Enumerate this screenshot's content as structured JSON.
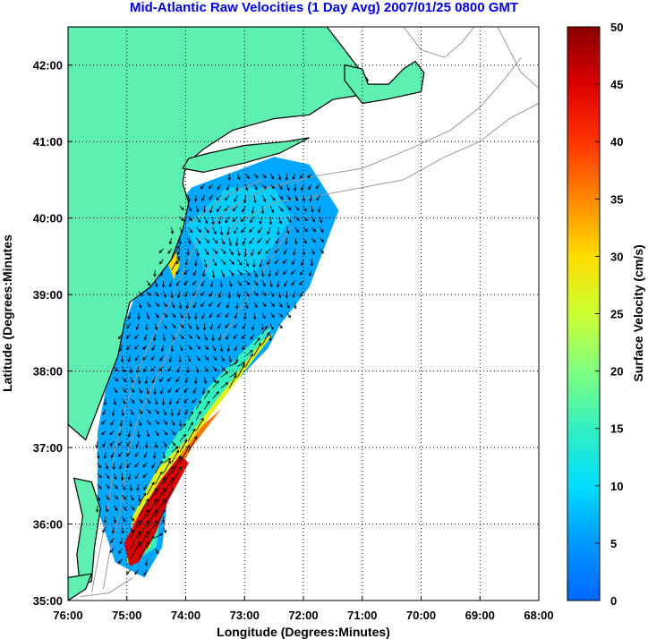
{
  "chart_data": {
    "type": "heatmap",
    "title": "Mid-Atlantic Raw Velocities (1 Day Avg) 2007/01/25 0800 GMT",
    "xlabel": "Longitude (Degrees:Minutes)",
    "ylabel": "Latitude (Degrees:Minutes",
    "xlim": [
      -76,
      -68
    ],
    "ylim": [
      35,
      42.5
    ],
    "x_ticks": [
      {
        "value": -76,
        "label": "76:00"
      },
      {
        "value": -75,
        "label": "75:00"
      },
      {
        "value": -74,
        "label": "74:00"
      },
      {
        "value": -73,
        "label": "73:00"
      },
      {
        "value": -72,
        "label": "72:00"
      },
      {
        "value": -71,
        "label": "71:00"
      },
      {
        "value": -70,
        "label": "70:00"
      },
      {
        "value": -69,
        "label": "69:00"
      },
      {
        "value": -68,
        "label": "68:00"
      }
    ],
    "y_ticks": [
      {
        "value": 35,
        "label": "35:00"
      },
      {
        "value": 36,
        "label": "36:00"
      },
      {
        "value": 37,
        "label": "37:00"
      },
      {
        "value": 38,
        "label": "38:00"
      },
      {
        "value": 39,
        "label": "39:00"
      },
      {
        "value": 40,
        "label": "40:00"
      },
      {
        "value": 41,
        "label": "41:00"
      },
      {
        "value": 42,
        "label": "42:00"
      }
    ],
    "grid": "dotted",
    "colorbar": {
      "label": "Surface Velocity (cm/s)",
      "range": [
        0,
        50
      ],
      "ticks": [
        {
          "value": 0,
          "label": "0"
        },
        {
          "value": 5,
          "label": "5"
        },
        {
          "value": 10,
          "label": "10"
        },
        {
          "value": 15,
          "label": "15"
        },
        {
          "value": 20,
          "label": "20"
        },
        {
          "value": 25,
          "label": "25"
        },
        {
          "value": 30,
          "label": "30"
        },
        {
          "value": 35,
          "label": "35"
        },
        {
          "value": 40,
          "label": "40"
        },
        {
          "value": 45,
          "label": "45"
        },
        {
          "value": 50,
          "label": "50"
        }
      ]
    },
    "colors": {
      "title": "#0000dd",
      "land": "#5ef0b0",
      "coast": "#000000",
      "bathymetry": "#9a9a9a",
      "arrows": "#000000"
    },
    "regions": [
      {
        "name": "shelf",
        "speed": 6,
        "polygon": [
          [
            -71.4,
            40.1
          ],
          [
            -71.9,
            39.1
          ],
          [
            -72.4,
            38.6
          ],
          [
            -72.6,
            38.3
          ],
          [
            -73.6,
            37.5
          ],
          [
            -74.3,
            36.4
          ],
          [
            -74.4,
            35.7
          ],
          [
            -74.7,
            35.3
          ],
          [
            -75.2,
            35.5
          ],
          [
            -75.5,
            36.2
          ],
          [
            -75.5,
            37.2
          ],
          [
            -75.3,
            38.0
          ],
          [
            -75.0,
            38.7
          ],
          [
            -74.8,
            39.1
          ],
          [
            -74.4,
            39.6
          ],
          [
            -74.1,
            40.2
          ],
          [
            -73.9,
            40.4
          ],
          [
            -73.2,
            40.6
          ],
          [
            -72.5,
            40.8
          ],
          [
            -71.9,
            40.7
          ]
        ]
      },
      {
        "name": "north-patch",
        "speed": 9,
        "polygon": [
          [
            -72.2,
            40.0
          ],
          [
            -72.8,
            39.3
          ],
          [
            -73.6,
            39.2
          ],
          [
            -74.0,
            39.9
          ],
          [
            -73.3,
            40.4
          ],
          [
            -72.5,
            40.4
          ]
        ]
      },
      {
        "name": "slope-band",
        "speed": 15,
        "polygon": [
          [
            -72.5,
            38.6
          ],
          [
            -72.9,
            38.2
          ],
          [
            -73.8,
            37.3
          ],
          [
            -74.4,
            36.3
          ],
          [
            -74.5,
            35.7
          ],
          [
            -74.9,
            35.5
          ],
          [
            -74.8,
            36.2
          ],
          [
            -74.3,
            37.0
          ],
          [
            -73.6,
            37.8
          ],
          [
            -73.1,
            38.2
          ],
          [
            -72.7,
            38.5
          ]
        ]
      },
      {
        "name": "gulf-stream-outer",
        "speed": 27,
        "polygon": [
          [
            -72.5,
            38.5
          ],
          [
            -72.9,
            38.1
          ],
          [
            -73.8,
            37.2
          ],
          [
            -74.5,
            36.2
          ],
          [
            -74.6,
            35.7
          ],
          [
            -75.0,
            35.5
          ],
          [
            -74.9,
            36.1
          ],
          [
            -74.5,
            36.7
          ],
          [
            -74.0,
            37.1
          ],
          [
            -73.5,
            37.6
          ],
          [
            -73.0,
            38.1
          ],
          [
            -72.7,
            38.4
          ]
        ]
      },
      {
        "name": "gulf-stream-mid",
        "speed": 36,
        "polygon": [
          [
            -73.4,
            37.5
          ],
          [
            -73.9,
            37.0
          ],
          [
            -74.4,
            36.3
          ],
          [
            -74.6,
            35.8
          ],
          [
            -74.9,
            35.5
          ],
          [
            -74.9,
            36.0
          ],
          [
            -74.5,
            36.5
          ],
          [
            -74.1,
            36.9
          ],
          [
            -73.7,
            37.3
          ]
        ]
      },
      {
        "name": "gulf-stream-core",
        "speed": 45,
        "polygon": [
          [
            -73.95,
            36.8
          ],
          [
            -74.3,
            36.3
          ],
          [
            -74.5,
            35.9
          ],
          [
            -74.8,
            35.5
          ],
          [
            -74.95,
            35.45
          ],
          [
            -75.05,
            35.75
          ],
          [
            -74.8,
            36.1
          ],
          [
            -74.4,
            36.6
          ],
          [
            -74.1,
            36.9
          ]
        ]
      },
      {
        "name": "delaware-spot",
        "speed": 30,
        "polygon": [
          [
            -74.2,
            39.6
          ],
          [
            -74.1,
            39.4
          ],
          [
            -74.2,
            39.2
          ],
          [
            -74.3,
            39.4
          ]
        ]
      }
    ],
    "land": [
      [
        [
          -76,
          42.5
        ],
        [
          -71.6,
          42.5
        ],
        [
          -71.2,
          42.1
        ],
        [
          -70.9,
          41.8
        ],
        [
          -71.1,
          41.6
        ],
        [
          -71.5,
          41.55
        ],
        [
          -71.9,
          41.35
        ],
        [
          -72.5,
          41.3
        ],
        [
          -73.2,
          41.15
        ],
        [
          -73.7,
          40.9
        ],
        [
          -74.0,
          40.7
        ],
        [
          -74.05,
          40.45
        ],
        [
          -73.95,
          40.2
        ],
        [
          -74.05,
          39.85
        ],
        [
          -74.25,
          39.45
        ],
        [
          -74.6,
          39.1
        ],
        [
          -74.95,
          38.9
        ],
        [
          -75.05,
          38.6
        ],
        [
          -75.15,
          38.2
        ],
        [
          -75.3,
          37.9
        ],
        [
          -75.55,
          37.4
        ],
        [
          -75.7,
          37.1
        ],
        [
          -75.85,
          37.2
        ],
        [
          -76,
          37.3
        ]
      ],
      [
        [
          -71.3,
          41.8
        ],
        [
          -71.0,
          41.5
        ],
        [
          -70.6,
          41.55
        ],
        [
          -70.0,
          41.65
        ],
        [
          -69.95,
          41.9
        ],
        [
          -70.1,
          42.05
        ],
        [
          -70.3,
          41.95
        ],
        [
          -70.55,
          41.75
        ],
        [
          -70.9,
          41.75
        ],
        [
          -71.0,
          41.95
        ],
        [
          -71.3,
          42.0
        ]
      ],
      [
        [
          -74.05,
          40.65
        ],
        [
          -73.7,
          40.6
        ],
        [
          -73.0,
          40.72
        ],
        [
          -72.4,
          40.85
        ],
        [
          -71.9,
          41.05
        ],
        [
          -72.3,
          41.0
        ],
        [
          -73.0,
          40.95
        ],
        [
          -73.6,
          40.85
        ],
        [
          -73.95,
          40.78
        ]
      ],
      [
        [
          -75.6,
          36.55
        ],
        [
          -75.45,
          36.2
        ],
        [
          -75.55,
          35.7
        ],
        [
          -75.6,
          35.25
        ],
        [
          -75.8,
          35.2
        ],
        [
          -75.85,
          35.6
        ],
        [
          -75.75,
          36.1
        ],
        [
          -75.9,
          36.6
        ]
      ],
      [
        [
          -76,
          35.0
        ],
        [
          -75.7,
          35.15
        ],
        [
          -75.6,
          35.35
        ],
        [
          -76,
          35.3
        ]
      ]
    ],
    "bathymetry": [
      [
        [
          -75.4,
          35.15
        ],
        [
          -75.3,
          35.6
        ],
        [
          -75.1,
          36.2
        ],
        [
          -75.0,
          36.9
        ],
        [
          -74.8,
          37.4
        ],
        [
          -74.5,
          37.9
        ],
        [
          -74.2,
          38.4
        ],
        [
          -73.9,
          38.9
        ],
        [
          -73.6,
          39.4
        ],
        [
          -73.2,
          39.9
        ],
        [
          -72.5,
          40.2
        ],
        [
          -71.7,
          40.3
        ],
        [
          -71.0,
          40.4
        ],
        [
          -70.3,
          40.5
        ],
        [
          -69.6,
          40.8
        ],
        [
          -69.0,
          41.0
        ],
        [
          -68.5,
          41.3
        ],
        [
          -68.0,
          41.5
        ]
      ],
      [
        [
          -75.6,
          35.1
        ],
        [
          -75.5,
          35.5
        ],
        [
          -75.3,
          36.3
        ],
        [
          -75.2,
          37.0
        ],
        [
          -75.0,
          37.6
        ],
        [
          -74.7,
          38.2
        ],
        [
          -74.4,
          38.7
        ],
        [
          -74.1,
          39.2
        ],
        [
          -73.8,
          39.7
        ],
        [
          -73.3,
          40.1
        ],
        [
          -72.6,
          40.4
        ],
        [
          -71.8,
          40.55
        ],
        [
          -71.0,
          40.65
        ],
        [
          -70.2,
          40.9
        ],
        [
          -69.5,
          41.15
        ],
        [
          -69.0,
          41.45
        ],
        [
          -68.6,
          41.8
        ],
        [
          -68.3,
          42.1
        ]
      ],
      [
        [
          -75.8,
          35.05
        ],
        [
          -75.3,
          35.1
        ],
        [
          -74.9,
          35.3
        ]
      ],
      [
        [
          -70.3,
          42.5
        ],
        [
          -70.0,
          42.2
        ],
        [
          -69.6,
          42.1
        ],
        [
          -69.3,
          42.3
        ],
        [
          -69.1,
          42.5
        ]
      ],
      [
        [
          -68.7,
          42.5
        ],
        [
          -68.5,
          42.2
        ],
        [
          -68.3,
          41.9
        ],
        [
          -68.0,
          41.7
        ]
      ],
      [
        [
          -74.3,
          39.8
        ],
        [
          -73.8,
          40.0
        ],
        [
          -73.3,
          40.3
        ],
        [
          -72.7,
          40.5
        ]
      ],
      [
        [
          -72.2,
          39.9
        ],
        [
          -72.6,
          39.4
        ],
        [
          -73.0,
          38.9
        ],
        [
          -73.4,
          38.4
        ]
      ]
    ],
    "vectors": {
      "lon_range": [
        -75.5,
        -71.6
      ],
      "lat_range": [
        35.4,
        40.6
      ],
      "spacing": 0.14,
      "max_length_deg": 0.28
    }
  }
}
